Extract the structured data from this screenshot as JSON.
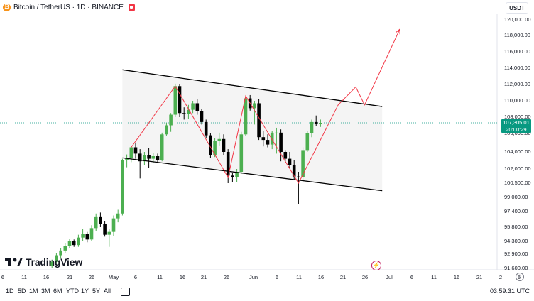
{
  "header": {
    "coin_glyph": "₿",
    "symbol": "Bitcoin / TetherUS · 1D · BINANCE",
    "currency": "USDT"
  },
  "price_axis": {
    "labels": [
      "120,000.00",
      "118,000.00",
      "116,000.00",
      "114,000.00",
      "112,000.00",
      "110,000.00",
      "108,000.00",
      "106,000.00",
      "104,000.00",
      "102,000.00",
      "100,500.00",
      "99,000.00",
      "97,400.00",
      "95,800.00",
      "94,300.00",
      "92,900.00",
      "91,600.00"
    ],
    "current_price": "107,305.01",
    "countdown": "20:00:29"
  },
  "time_axis": {
    "labels": [
      "6",
      "11",
      "16",
      "21",
      "26",
      "May",
      "6",
      "11",
      "16",
      "21",
      "26",
      "Jun",
      "6",
      "11",
      "16",
      "21",
      "26",
      "Jul",
      "6",
      "11",
      "16",
      "21",
      "2",
      "6"
    ]
  },
  "logo": {
    "text": "TradingView"
  },
  "toolbar": {
    "timeframes": [
      "1D",
      "5D",
      "1M",
      "3M",
      "6M",
      "YTD",
      "1Y",
      "5Y",
      "All"
    ],
    "clock": "03:59:31 UTC"
  },
  "colors": {
    "up": "#089981",
    "candle_up": "#4caf50",
    "candle_down": "#000000",
    "projection": "#f23645"
  },
  "icons": {
    "gear": "⚙",
    "bolt": "⚡"
  },
  "chart_data": {
    "type": "candlestick",
    "series": [
      {
        "date": "Apr 17",
        "o": 91800,
        "h": 92400,
        "l": 91600,
        "c": 92200
      },
      {
        "date": "Apr 18",
        "o": 92200,
        "h": 93000,
        "l": 91900,
        "c": 92800
      },
      {
        "date": "Apr 19",
        "o": 92800,
        "h": 93600,
        "l": 92500,
        "c": 93300
      },
      {
        "date": "Apr 20",
        "o": 93300,
        "h": 94100,
        "l": 93000,
        "c": 93800
      },
      {
        "date": "Apr 21",
        "o": 93800,
        "h": 94600,
        "l": 93600,
        "c": 94300
      },
      {
        "date": "Apr 22",
        "o": 94300,
        "h": 94500,
        "l": 93700,
        "c": 93900
      },
      {
        "date": "Apr 23",
        "o": 93900,
        "h": 95000,
        "l": 93700,
        "c": 94700
      },
      {
        "date": "Apr 24",
        "o": 94700,
        "h": 95600,
        "l": 94300,
        "c": 95100
      },
      {
        "date": "Apr 25",
        "o": 95100,
        "h": 95300,
        "l": 94200,
        "c": 94500
      },
      {
        "date": "Apr 26",
        "o": 94500,
        "h": 96000,
        "l": 94300,
        "c": 95700
      },
      {
        "date": "Apr 27",
        "o": 95700,
        "h": 97200,
        "l": 95400,
        "c": 96900
      },
      {
        "date": "Apr 28",
        "o": 96900,
        "h": 97300,
        "l": 95800,
        "c": 96100
      },
      {
        "date": "Apr 29",
        "o": 96100,
        "h": 96400,
        "l": 94800,
        "c": 95000
      },
      {
        "date": "Apr 30",
        "o": 95000,
        "h": 95600,
        "l": 93700,
        "c": 95300
      },
      {
        "date": "May 1",
        "o": 95300,
        "h": 97000,
        "l": 94900,
        "c": 96700
      },
      {
        "date": "May 2",
        "o": 96700,
        "h": 97600,
        "l": 96300,
        "c": 97200
      },
      {
        "date": "May 3",
        "o": 97200,
        "h": 103200,
        "l": 97000,
        "c": 103000
      },
      {
        "date": "May 4",
        "o": 103000,
        "h": 103700,
        "l": 102200,
        "c": 103300
      },
      {
        "date": "May 5",
        "o": 103300,
        "h": 104700,
        "l": 102800,
        "c": 104500
      },
      {
        "date": "May 6",
        "o": 104500,
        "h": 105000,
        "l": 103200,
        "c": 103800
      },
      {
        "date": "May 7",
        "o": 103800,
        "h": 104300,
        "l": 101000,
        "c": 102900
      },
      {
        "date": "May 8",
        "o": 102900,
        "h": 104000,
        "l": 102500,
        "c": 103600
      },
      {
        "date": "May 9",
        "o": 103600,
        "h": 104400,
        "l": 102100,
        "c": 103200
      },
      {
        "date": "May 10",
        "o": 103200,
        "h": 103900,
        "l": 102700,
        "c": 103500
      },
      {
        "date": "May 11",
        "o": 103500,
        "h": 103800,
        "l": 102800,
        "c": 103000
      },
      {
        "date": "May 12",
        "o": 103000,
        "h": 106100,
        "l": 102900,
        "c": 105900
      },
      {
        "date": "May 13",
        "o": 105900,
        "h": 107300,
        "l": 105700,
        "c": 107000
      },
      {
        "date": "May 14",
        "o": 107000,
        "h": 108500,
        "l": 106200,
        "c": 108300
      },
      {
        "date": "May 15",
        "o": 108300,
        "h": 112100,
        "l": 108000,
        "c": 111800
      },
      {
        "date": "May 16",
        "o": 111800,
        "h": 112000,
        "l": 108000,
        "c": 108500
      },
      {
        "date": "May 17",
        "o": 108500,
        "h": 109200,
        "l": 107700,
        "c": 108400
      },
      {
        "date": "May 18",
        "o": 108400,
        "h": 109500,
        "l": 107800,
        "c": 108900
      },
      {
        "date": "May 19",
        "o": 108900,
        "h": 110000,
        "l": 108500,
        "c": 109700
      },
      {
        "date": "May 20",
        "o": 109700,
        "h": 110200,
        "l": 108300,
        "c": 108700
      },
      {
        "date": "May 21",
        "o": 108700,
        "h": 109000,
        "l": 107100,
        "c": 107400
      },
      {
        "date": "May 22",
        "o": 107400,
        "h": 107700,
        "l": 105500,
        "c": 105800
      },
      {
        "date": "May 23",
        "o": 105800,
        "h": 106000,
        "l": 103300,
        "c": 103600
      },
      {
        "date": "May 24",
        "o": 103600,
        "h": 105500,
        "l": 103400,
        "c": 105200
      },
      {
        "date": "May 25",
        "o": 105200,
        "h": 106100,
        "l": 104700,
        "c": 105400
      },
      {
        "date": "May 26",
        "o": 105400,
        "h": 105900,
        "l": 103600,
        "c": 104000
      },
      {
        "date": "May 27",
        "o": 104000,
        "h": 104300,
        "l": 100500,
        "c": 101300
      },
      {
        "date": "May 28",
        "o": 101300,
        "h": 101600,
        "l": 100600,
        "c": 101100
      },
      {
        "date": "May 29",
        "o": 101100,
        "h": 102000,
        "l": 100600,
        "c": 101700
      },
      {
        "date": "May 30",
        "o": 101700,
        "h": 106200,
        "l": 101500,
        "c": 105900
      },
      {
        "date": "May 31",
        "o": 105900,
        "h": 110600,
        "l": 105700,
        "c": 110300
      },
      {
        "date": "Jun 1",
        "o": 110300,
        "h": 110700,
        "l": 108800,
        "c": 109100
      },
      {
        "date": "Jun 2",
        "o": 109100,
        "h": 110000,
        "l": 107100,
        "c": 109700
      },
      {
        "date": "Jun 3",
        "o": 109700,
        "h": 110200,
        "l": 105300,
        "c": 105600
      },
      {
        "date": "Jun 4",
        "o": 105600,
        "h": 106300,
        "l": 104600,
        "c": 105300
      },
      {
        "date": "Jun 5",
        "o": 105300,
        "h": 105900,
        "l": 104500,
        "c": 104800
      },
      {
        "date": "Jun 6",
        "o": 104800,
        "h": 106300,
        "l": 104300,
        "c": 106100
      },
      {
        "date": "Jun 7",
        "o": 106100,
        "h": 106700,
        "l": 103800,
        "c": 106100
      },
      {
        "date": "Jun 8",
        "o": 106100,
        "h": 106500,
        "l": 102900,
        "c": 104000
      },
      {
        "date": "Jun 9",
        "o": 104000,
        "h": 104200,
        "l": 102700,
        "c": 103200
      },
      {
        "date": "Jun 10",
        "o": 103200,
        "h": 104000,
        "l": 102000,
        "c": 102500
      },
      {
        "date": "Jun 11",
        "o": 102500,
        "h": 103000,
        "l": 100800,
        "c": 101200
      },
      {
        "date": "Jun 12",
        "o": 101200,
        "h": 101700,
        "l": 98200,
        "c": 101100
      },
      {
        "date": "Jun 13",
        "o": 101100,
        "h": 104500,
        "l": 100700,
        "c": 104200
      },
      {
        "date": "Jun 14",
        "o": 104200,
        "h": 106300,
        "l": 104000,
        "c": 106000
      },
      {
        "date": "Jun 15",
        "o": 106000,
        "h": 107700,
        "l": 105600,
        "c": 107400
      },
      {
        "date": "Jun 16",
        "o": 107400,
        "h": 108200,
        "l": 106900,
        "c": 107200
      },
      {
        "date": "Jun 17",
        "o": 107200,
        "h": 107700,
        "l": 106800,
        "c": 107305
      }
    ],
    "channel": {
      "upper": [
        {
          "date": "May 3",
          "price": 113800
        },
        {
          "date": "Jul 1",
          "price": 109300
        }
      ],
      "lower": [
        {
          "date": "May 3",
          "price": 103300
        },
        {
          "date": "Jul 1",
          "price": 99700
        }
      ]
    },
    "projection": [
      {
        "date": "May 5",
        "price": 104500
      },
      {
        "date": "May 15",
        "price": 111800
      },
      {
        "date": "May 27",
        "price": 101100
      },
      {
        "date": "May 31",
        "price": 110600
      },
      {
        "date": "Jun 12",
        "price": 100500
      },
      {
        "date": "Jun 21",
        "price": 109500
      },
      {
        "date": "Jun 25",
        "price": 111700
      },
      {
        "date": "Jun 27",
        "price": 109500
      },
      {
        "date": "Jul 5",
        "price": 118800
      }
    ],
    "ylim": [
      91000,
      121000
    ]
  }
}
